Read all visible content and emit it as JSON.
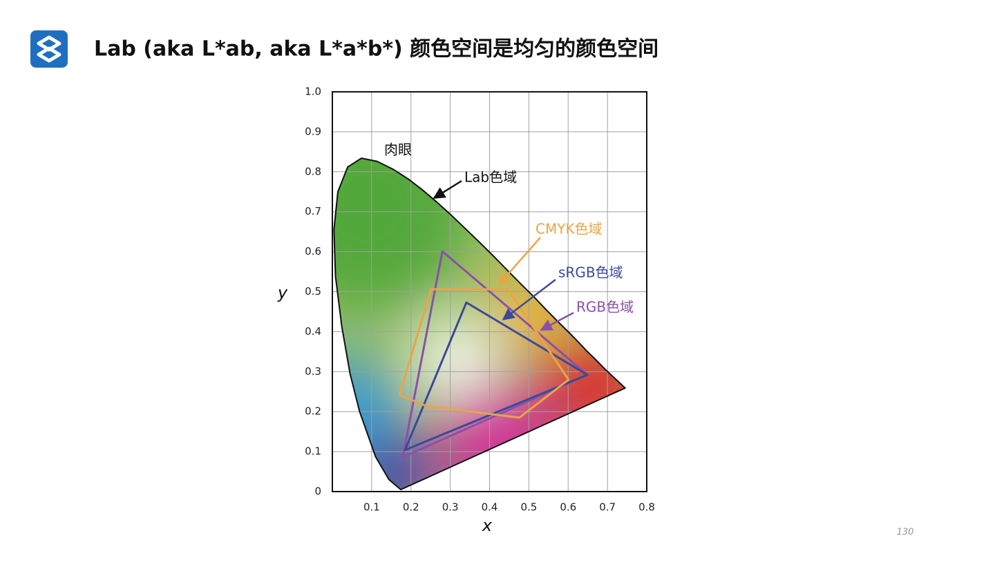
{
  "header": {
    "title": "Lab (aka L*ab, aka L*a*b*) 颜色空间是均匀的颜色空间"
  },
  "page_number": "130",
  "chart_data": {
    "type": "polygon",
    "xlabel": "x",
    "ylabel": "y",
    "xlim": [
      0,
      0.8
    ],
    "ylim": [
      0,
      1
    ],
    "xticks": [
      0.1,
      0.2,
      0.3,
      0.4,
      0.5,
      0.6,
      0.7,
      0.8
    ],
    "yticks": [
      0,
      0.1,
      0.2,
      0.3,
      0.4,
      0.5,
      0.6,
      0.7,
      0.8,
      0.9,
      {
        "value": 1,
        "label": "1.0"
      }
    ],
    "grid": true,
    "series": [
      {
        "color": "#111111",
        "x": [
          0.174,
          0.144,
          0.11,
          0.069,
          0.045,
          0.024,
          0.008,
          0.004,
          0.014,
          0.039,
          0.074,
          0.114,
          0.155,
          0.193,
          0.23,
          0.266,
          0.302,
          0.337,
          0.373,
          0.409,
          0.444,
          0.479,
          0.513,
          0.545,
          0.575,
          0.603,
          0.627,
          0.648,
          0.666,
          0.692,
          0.745
        ],
        "values": [
          0.005,
          0.03,
          0.087,
          0.201,
          0.295,
          0.413,
          0.538,
          0.655,
          0.75,
          0.812,
          0.834,
          0.826,
          0.806,
          0.782,
          0.754,
          0.724,
          0.692,
          0.659,
          0.625,
          0.59,
          0.555,
          0.52,
          0.487,
          0.454,
          0.424,
          0.397,
          0.373,
          0.351,
          0.334,
          0.308,
          0.259
        ]
      },
      {
        "color": "#8b4fa8",
        "x": [
          0.28,
          0.649,
          0.179
        ],
        "values": [
          0.601,
          0.292,
          0.086
        ]
      },
      {
        "color": "#3a4a9a",
        "x": [
          0.341,
          0.649,
          0.185
        ],
        "values": [
          0.473,
          0.292,
          0.104
        ]
      },
      {
        "color": "#eba445",
        "x": [
          0.251,
          0.447,
          0.601,
          0.476,
          0.239,
          0.171
        ],
        "values": [
          0.506,
          0.506,
          0.28,
          0.185,
          0.214,
          0.242
        ]
      }
    ],
    "annotations": [
      {
        "text": "肉眼",
        "color": "#111111"
      },
      {
        "text": "Lab色域",
        "color": "#111111"
      },
      {
        "text": "CMYK色域",
        "color": "#eba445"
      },
      {
        "text": "sRGB色域",
        "color": "#3a4a9a"
      },
      {
        "text": "RGB色域",
        "color": "#8b4fa8"
      }
    ]
  }
}
